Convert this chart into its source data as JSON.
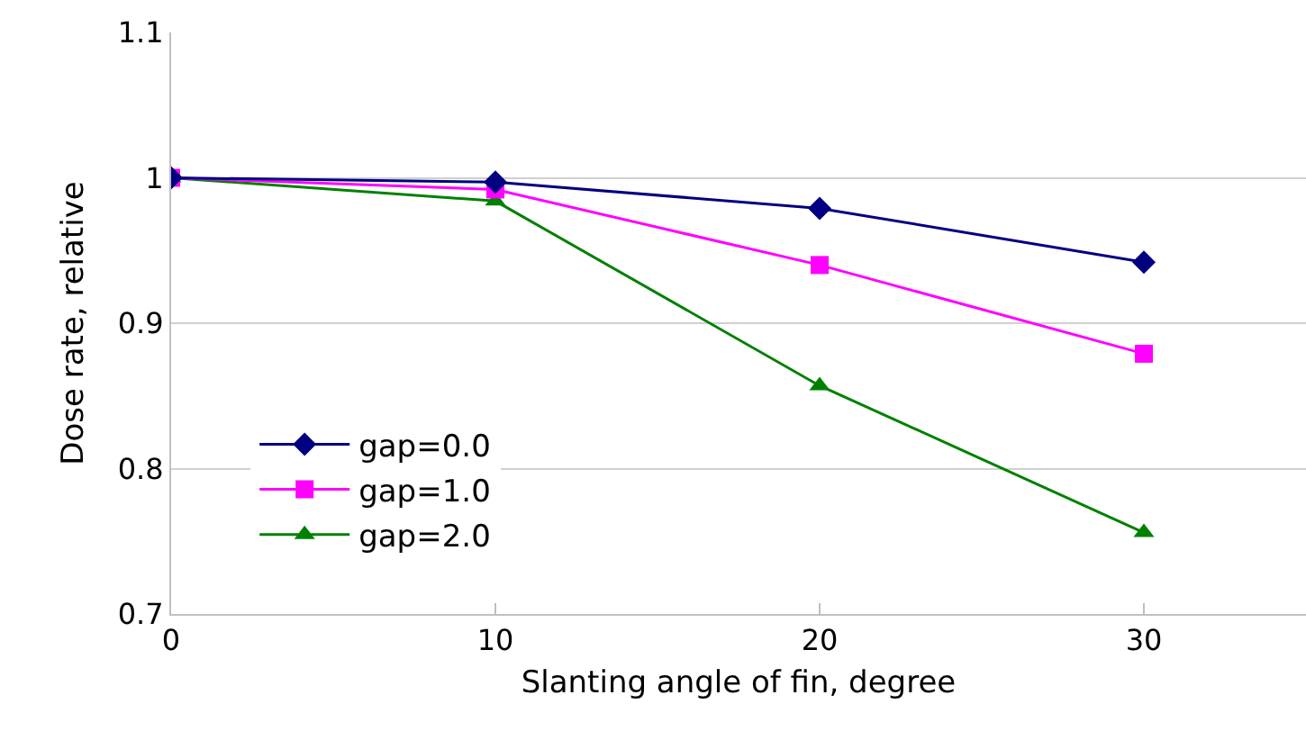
{
  "chart_data": {
    "type": "line",
    "xlabel": "Slanting angle of fin, degree",
    "ylabel": "Dose rate, relative",
    "x": [
      0,
      10,
      20,
      30
    ],
    "series": [
      {
        "name": "gap=0.0",
        "color": "#000080",
        "values": [
          1.0,
          0.997,
          0.979,
          0.942
        ],
        "marker": "diamond"
      },
      {
        "name": "gap=1.0",
        "color": "#ff00ff",
        "values": [
          1.0,
          0.992,
          0.94,
          0.879
        ],
        "marker": "square"
      },
      {
        "name": "gap=2.0",
        "color": "#008000",
        "values": [
          1.0,
          0.984,
          0.857,
          0.756
        ],
        "marker": "triangle"
      }
    ],
    "xlim": [
      0,
      35
    ],
    "xticks": [
      0,
      10,
      20,
      30
    ],
    "ylim": [
      0.7,
      1.1
    ],
    "yticks": [
      0.7,
      0.8,
      0.9,
      1,
      1.1
    ],
    "grid": "y",
    "legend": "bottom left"
  }
}
